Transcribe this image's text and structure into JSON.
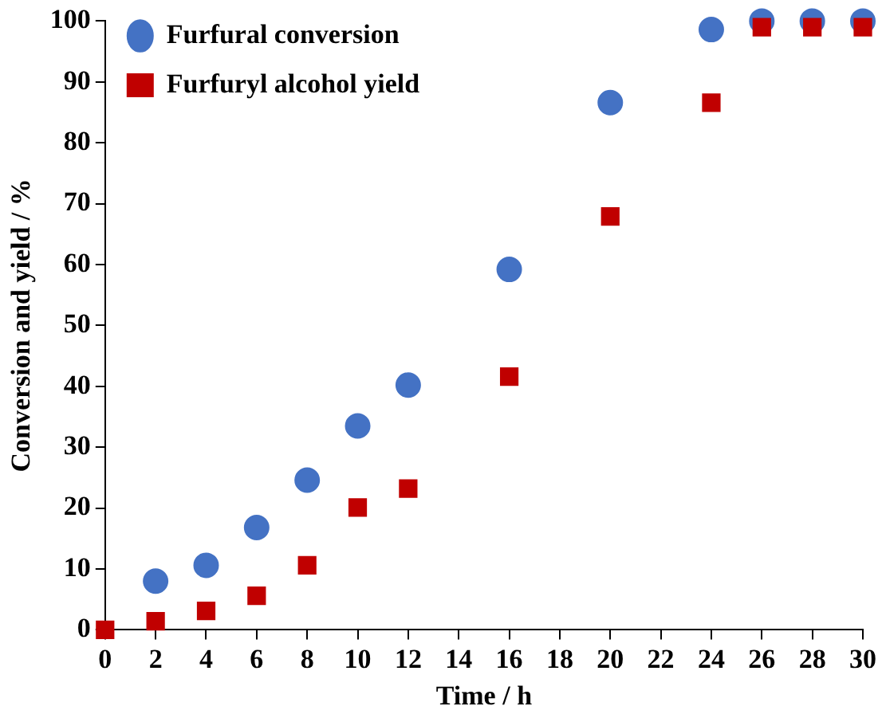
{
  "chart_data": {
    "type": "scatter",
    "xlabel": "Time / h",
    "ylabel": "Conversion and yield / %",
    "x": [
      0,
      2,
      4,
      6,
      8,
      10,
      12,
      16,
      20,
      24,
      26,
      28,
      30
    ],
    "series": [
      {
        "name": "Furfural conversion",
        "color": "#4472c4",
        "marker": "circle",
        "values": [
          null,
          8,
          10.6,
          16.8,
          24.6,
          33.5,
          40.2,
          59.2,
          86.6,
          98.6,
          100,
          100,
          100
        ]
      },
      {
        "name": "Furfuryl alcohol yield",
        "color": "#c00000",
        "marker": "square",
        "values": [
          0,
          1.4,
          3.1,
          5.6,
          10.6,
          20.1,
          23.2,
          41.6,
          67.9,
          86.6,
          99,
          99,
          99
        ]
      }
    ],
    "xlim": [
      0,
      30
    ],
    "xticks": [
      0,
      2,
      4,
      6,
      8,
      10,
      12,
      14,
      16,
      18,
      20,
      22,
      24,
      26,
      28,
      30
    ],
    "ylim": [
      0,
      100
    ],
    "yticks": [
      0,
      10,
      20,
      30,
      40,
      50,
      60,
      70,
      80,
      90,
      100
    ],
    "grid": false,
    "legend": "top left"
  }
}
